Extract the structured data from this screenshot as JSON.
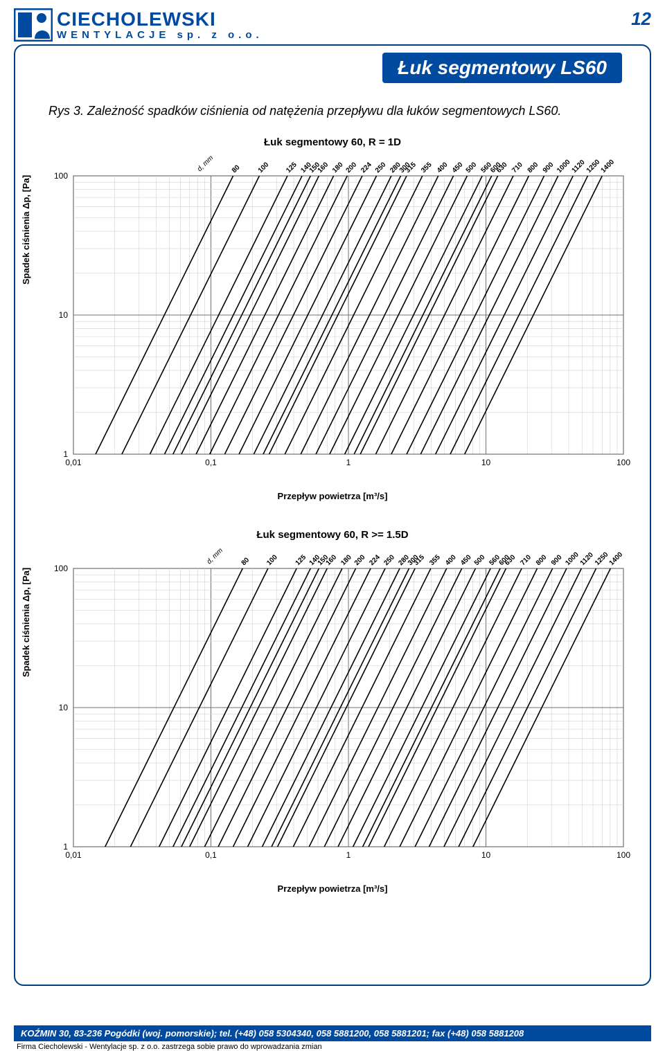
{
  "colors": {
    "brand_blue": "#004a9f",
    "frame_blue": "#004080",
    "banner_bg": "#004a9f",
    "text_black": "#111111",
    "grid_minor": "#d0d0d0",
    "grid_major": "#707070",
    "line_color": "#000000",
    "background": "#ffffff"
  },
  "header": {
    "company_name": "CIECHOLEWSKI",
    "company_sub": "WENTYLACJE sp. z o.o.",
    "page_number": "12"
  },
  "title_banner": "Łuk segmentowy LS60",
  "caption": "Rys 3. Zależność spadków ciśnienia od natężenia przepływu dla łuków segmentowych LS60.",
  "charts": [
    {
      "title": "Łuk segmentowy 60, R = 1D",
      "ylabel": "Spadek ciśnienia Δp, [Pa]",
      "xlabel": "Przepływ powietrza [m³/s]",
      "xscale": "log",
      "yscale": "log",
      "xlim": [
        0.01,
        100
      ],
      "ylim": [
        1,
        100
      ],
      "xticks": [
        0.01,
        0.1,
        1,
        10,
        100
      ],
      "xtick_labels": [
        "0,01",
        "0,1",
        "1",
        "10",
        "100"
      ],
      "yticks": [
        1,
        10,
        100
      ],
      "ytick_labels": [
        "1",
        "10",
        "100"
      ],
      "line_width": 1.6,
      "diameter_label": "d, mm",
      "diameters": [
        80,
        100,
        125,
        140,
        150,
        160,
        180,
        200,
        224,
        250,
        280,
        300,
        315,
        355,
        400,
        450,
        500,
        560,
        600,
        630,
        710,
        800,
        900,
        1000,
        1120,
        1250,
        1400
      ],
      "series_start_x": [
        0.0145,
        0.0225,
        0.036,
        0.046,
        0.053,
        0.061,
        0.078,
        0.098,
        0.126,
        0.16,
        0.205,
        0.24,
        0.265,
        0.345,
        0.45,
        0.58,
        0.73,
        0.94,
        1.1,
        1.22,
        1.58,
        2.05,
        2.65,
        3.35,
        4.3,
        5.5,
        7.0
      ],
      "slope": 2.0,
      "label_fontsize": 10,
      "title_fontsize": 15,
      "axis_fontsize": 13
    },
    {
      "title": "Łuk segmentowy 60, R >= 1.5D",
      "ylabel": "Spadek ciśnienia Δp, [Pa]",
      "xlabel": "Przepływ powietrza [m³/s]",
      "xscale": "log",
      "yscale": "log",
      "xlim": [
        0.01,
        100
      ],
      "ylim": [
        1,
        100
      ],
      "xticks": [
        0.01,
        0.1,
        1,
        10,
        100
      ],
      "xtick_labels": [
        "0,01",
        "0,1",
        "1",
        "10",
        "100"
      ],
      "yticks": [
        1,
        10,
        100
      ],
      "ytick_labels": [
        "1",
        "10",
        "100"
      ],
      "line_width": 1.6,
      "diameter_label": "d, mm",
      "diameters": [
        80,
        100,
        125,
        140,
        150,
        160,
        180,
        200,
        224,
        250,
        280,
        300,
        315,
        355,
        400,
        450,
        500,
        560,
        600,
        630,
        710,
        800,
        900,
        1000,
        1120,
        1250,
        1400
      ],
      "series_start_x": [
        0.017,
        0.026,
        0.042,
        0.053,
        0.061,
        0.07,
        0.09,
        0.113,
        0.145,
        0.185,
        0.236,
        0.276,
        0.305,
        0.397,
        0.518,
        0.668,
        0.84,
        1.08,
        1.27,
        1.4,
        1.82,
        2.36,
        3.05,
        3.86,
        4.95,
        6.33,
        8.05
      ],
      "slope": 2.0,
      "label_fontsize": 10,
      "title_fontsize": 15,
      "axis_fontsize": 13
    }
  ],
  "footer": {
    "address_line": "KOŹMIN 30, 83-236 Pogódki (woj. pomorskie); tel. (+48) 058 5304340, 058 5881200, 058 5881201; fax (+48) 058 5881208",
    "note": "Firma Ciecholewski - Wentylacje sp. z o.o. zastrzega sobie prawo do wprowadzania zmian"
  }
}
